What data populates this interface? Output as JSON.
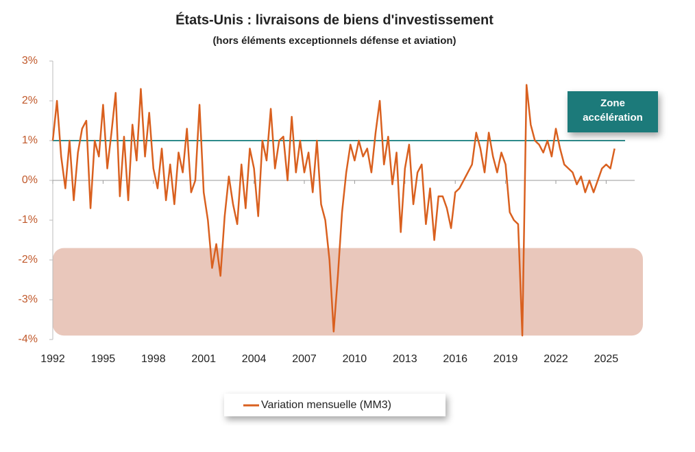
{
  "chart_data": {
    "type": "line",
    "title": "États-Unis : livraisons de biens d'investissement",
    "subtitle": "(hors éléments exceptionnels défense et aviation)",
    "annotation": [
      "Zone",
      "accélération"
    ],
    "reference_line": {
      "value": 1,
      "color": "#2e8b8b"
    },
    "shaded_band": {
      "ylim": [
        -3.9,
        -1.7
      ],
      "color": "#e9c7bb"
    },
    "xlim": [
      1992,
      2026.7
    ],
    "xticks": [
      1992,
      1995,
      1998,
      2001,
      2004,
      2007,
      2010,
      2013,
      2016,
      2019,
      2022,
      2025
    ],
    "ylim": [
      -4,
      3
    ],
    "yticks": [
      {
        "value": 3,
        "label": "3%"
      },
      {
        "value": 2,
        "label": "2%"
      },
      {
        "value": 1,
        "label": "1%"
      },
      {
        "value": 0,
        "label": "0%"
      },
      {
        "value": -1,
        "label": "-1%"
      },
      {
        "value": -2,
        "label": "-2%"
      },
      {
        "value": -3,
        "label": "-3%"
      },
      {
        "value": -4,
        "label": "-4%"
      }
    ],
    "x": [
      1992,
      1992.25,
      1992.5,
      1992.75,
      1993,
      1993.25,
      1993.5,
      1993.75,
      1994,
      1994.25,
      1994.5,
      1994.75,
      1995,
      1995.25,
      1995.5,
      1995.75,
      1996,
      1996.25,
      1996.5,
      1996.75,
      1997,
      1997.25,
      1997.5,
      1997.75,
      1998,
      1998.25,
      1998.5,
      1998.75,
      1999,
      1999.25,
      1999.5,
      1999.75,
      2000,
      2000.25,
      2000.5,
      2000.75,
      2001,
      2001.25,
      2001.5,
      2001.75,
      2002,
      2002.25,
      2002.5,
      2002.75,
      2003,
      2003.25,
      2003.5,
      2003.75,
      2004,
      2004.25,
      2004.5,
      2004.75,
      2005,
      2005.25,
      2005.5,
      2005.75,
      2006,
      2006.25,
      2006.5,
      2006.75,
      2007,
      2007.25,
      2007.5,
      2007.75,
      2008,
      2008.25,
      2008.5,
      2008.75,
      2009,
      2009.25,
      2009.5,
      2009.75,
      2010,
      2010.25,
      2010.5,
      2010.75,
      2011,
      2011.25,
      2011.5,
      2011.75,
      2012,
      2012.25,
      2012.5,
      2012.75,
      2013,
      2013.25,
      2013.5,
      2013.75,
      2014,
      2014.25,
      2014.5,
      2014.75,
      2015,
      2015.25,
      2015.5,
      2015.75,
      2016,
      2016.25,
      2016.5,
      2016.75,
      2017,
      2017.25,
      2017.5,
      2017.75,
      2018,
      2018.25,
      2018.5,
      2018.75,
      2019,
      2019.25,
      2019.5,
      2019.75,
      2020,
      2020.25,
      2020.5,
      2020.75,
      2021,
      2021.25,
      2021.5,
      2021.75,
      2022,
      2022.25,
      2022.5,
      2022.75,
      2023,
      2023.25,
      2023.5,
      2023.75,
      2024,
      2024.25,
      2024.5,
      2024.75,
      2025,
      2025.25,
      2025.5
    ],
    "series": [
      {
        "name": "Variation mensuelle (MM3)",
        "color": "#d9601f",
        "values": [
          1.0,
          2.0,
          0.6,
          -0.2,
          1.0,
          -0.5,
          0.7,
          1.3,
          1.5,
          -0.7,
          1.0,
          0.6,
          1.9,
          0.3,
          1.2,
          2.2,
          -0.4,
          1.1,
          -0.5,
          1.4,
          0.5,
          2.3,
          0.6,
          1.7,
          0.3,
          -0.2,
          0.8,
          -0.5,
          0.4,
          -0.6,
          0.7,
          0.2,
          1.3,
          -0.3,
          0.0,
          1.9,
          -0.3,
          -1.0,
          -2.2,
          -1.6,
          -2.4,
          -0.9,
          0.1,
          -0.6,
          -1.1,
          0.4,
          -0.7,
          0.8,
          0.3,
          -0.9,
          1.0,
          0.5,
          1.8,
          0.3,
          1.0,
          1.1,
          0.0,
          1.6,
          0.2,
          1.0,
          0.2,
          0.7,
          -0.3,
          1.0,
          -0.6,
          -1.0,
          -2.0,
          -3.8,
          -2.4,
          -0.8,
          0.2,
          0.9,
          0.5,
          1.0,
          0.6,
          0.8,
          0.2,
          1.2,
          2.0,
          0.4,
          1.1,
          -0.1,
          0.7,
          -1.3,
          0.3,
          0.9,
          -0.6,
          0.2,
          0.4,
          -1.1,
          -0.2,
          -1.5,
          -0.4,
          -0.4,
          -0.7,
          -1.2,
          -0.3,
          -0.2,
          0.0,
          0.2,
          0.4,
          1.2,
          0.8,
          0.2,
          1.2,
          0.6,
          0.2,
          0.7,
          0.4,
          -0.8,
          -1.0,
          -1.1,
          -3.9,
          2.4,
          1.4,
          1.0,
          0.9,
          0.7,
          1.0,
          0.6,
          1.3,
          0.8,
          0.4,
          0.3,
          0.2,
          -0.1,
          0.1,
          -0.3,
          0.0,
          -0.3,
          0.0,
          0.3,
          0.4,
          0.3,
          0.8
        ]
      }
    ]
  }
}
